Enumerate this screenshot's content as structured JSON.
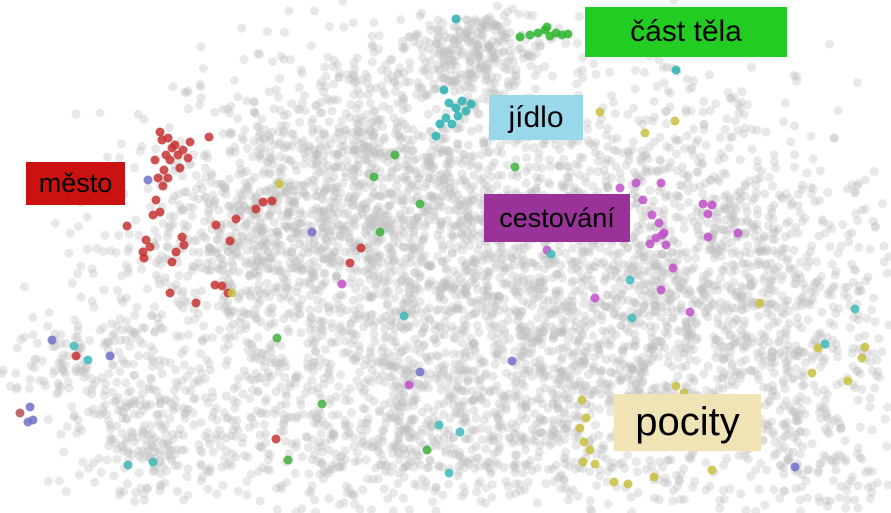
{
  "chart_data": {
    "type": "scatter",
    "title": "",
    "xlabel": "",
    "ylabel": "",
    "grid": false,
    "legend": "none",
    "background_points": {
      "color": "#bdbdbd",
      "opacity": 0.35,
      "approx_count": 6000
    },
    "clusters": [
      {
        "key": "cast_tela",
        "label": "část  těla",
        "label_bg": "#22cc22",
        "point_color": "#2db52d",
        "points": [
          [
            520,
            37
          ],
          [
            530,
            35
          ],
          [
            538,
            33
          ],
          [
            545,
            30
          ],
          [
            550,
            36
          ],
          [
            556,
            33
          ],
          [
            562,
            35
          ],
          [
            547,
            27
          ],
          [
            568,
            34
          ]
        ]
      },
      {
        "key": "jidlo",
        "label": "jídlo",
        "label_bg": "#99d8ea",
        "point_color": "#29b2b2",
        "points": [
          [
            444,
            90
          ],
          [
            449,
            103
          ],
          [
            456,
            108
          ],
          [
            462,
            101
          ],
          [
            466,
            111
          ],
          [
            471,
            104
          ],
          [
            446,
            118
          ],
          [
            452,
            124
          ],
          [
            440,
            124
          ],
          [
            458,
            116
          ],
          [
            436,
            136
          ],
          [
            456,
            19
          ],
          [
            676,
            70
          ]
        ]
      },
      {
        "key": "mesto",
        "label": "město",
        "label_bg": "#cc1111",
        "point_color": "#c83232",
        "points": [
          [
            160,
            132
          ],
          [
            168,
            138
          ],
          [
            175,
            145
          ],
          [
            183,
            150
          ],
          [
            170,
            160
          ],
          [
            164,
            170
          ],
          [
            158,
            178
          ],
          [
            178,
            155
          ],
          [
            188,
            158
          ],
          [
            172,
            148
          ],
          [
            162,
            140
          ],
          [
            166,
            155
          ],
          [
            155,
            160
          ],
          [
            180,
            168
          ],
          [
            190,
            142
          ],
          [
            168,
            178
          ],
          [
            163,
            186
          ],
          [
            156,
            200
          ],
          [
            160,
            212
          ],
          [
            153,
            215
          ],
          [
            127,
            226
          ],
          [
            146,
            240
          ],
          [
            150,
            247
          ],
          [
            143,
            252
          ],
          [
            144,
            258
          ],
          [
            182,
            237
          ],
          [
            184,
            245
          ],
          [
            176,
            252
          ],
          [
            172,
            262
          ],
          [
            209,
            137
          ],
          [
            216,
            225
          ],
          [
            236,
            219
          ],
          [
            256,
            209
          ],
          [
            263,
            202
          ],
          [
            272,
            201
          ],
          [
            230,
            241
          ],
          [
            215,
            285
          ],
          [
            222,
            286
          ],
          [
            228,
            293
          ],
          [
            196,
            303
          ],
          [
            170,
            293
          ],
          [
            361,
            248
          ],
          [
            350,
            263
          ],
          [
            276,
            439
          ],
          [
            76,
            356
          ]
        ]
      },
      {
        "key": "cestovani",
        "label": "cestování",
        "label_bg": "#993399",
        "point_color": "#c050c8",
        "points": [
          [
            620,
            188
          ],
          [
            636,
            183
          ],
          [
            661,
            183
          ],
          [
            643,
            200
          ],
          [
            652,
            215
          ],
          [
            659,
            223
          ],
          [
            664,
            233
          ],
          [
            656,
            238
          ],
          [
            666,
            245
          ],
          [
            650,
            244
          ],
          [
            662,
            235
          ],
          [
            703,
            204
          ],
          [
            712,
            205
          ],
          [
            708,
            214
          ],
          [
            738,
            233
          ],
          [
            624,
            238
          ],
          [
            708,
            237
          ],
          [
            673,
            268
          ],
          [
            661,
            290
          ],
          [
            595,
            298
          ],
          [
            547,
            250
          ],
          [
            690,
            312
          ],
          [
            342,
            284
          ],
          [
            409,
            385
          ]
        ]
      },
      {
        "key": "pocity",
        "label": "pocity",
        "label_bg": "#f0e4b6",
        "point_color": "#c8c040",
        "points": [
          [
            582,
            400
          ],
          [
            586,
            418
          ],
          [
            580,
            428
          ],
          [
            584,
            442
          ],
          [
            590,
            450
          ],
          [
            583,
            462
          ],
          [
            595,
            464
          ],
          [
            614,
            482
          ],
          [
            628,
            484
          ],
          [
            654,
            477
          ],
          [
            676,
            386
          ],
          [
            684,
            393
          ],
          [
            712,
            470
          ],
          [
            760,
            303
          ],
          [
            812,
            373
          ],
          [
            818,
            348
          ],
          [
            848,
            381
          ],
          [
            865,
            347
          ],
          [
            862,
            358
          ],
          [
            232,
            293
          ],
          [
            279,
            184
          ],
          [
            645,
            133
          ],
          [
            675,
            121
          ],
          [
            600,
            112
          ]
        ]
      }
    ],
    "other_points": [
      {
        "color": "#7070c8",
        "points": [
          [
            148,
            180
          ],
          [
            52,
            340
          ],
          [
            110,
            356
          ],
          [
            30,
            407
          ],
          [
            28,
            422
          ],
          [
            33,
            420
          ],
          [
            512,
            361
          ],
          [
            795,
            467
          ],
          [
            420,
            372
          ],
          [
            312,
            232
          ]
        ]
      },
      {
        "color": "#40b8b8",
        "points": [
          [
            74,
            346
          ],
          [
            88,
            360
          ],
          [
            128,
            465
          ],
          [
            153,
            462
          ],
          [
            439,
            425
          ],
          [
            460,
            432
          ],
          [
            449,
            473
          ],
          [
            404,
            316
          ],
          [
            551,
            254
          ],
          [
            630,
            280
          ],
          [
            632,
            318
          ],
          [
            855,
            309
          ],
          [
            825,
            344
          ]
        ]
      },
      {
        "color": "#40b040",
        "points": [
          [
            395,
            155
          ],
          [
            374,
            177
          ],
          [
            420,
            204
          ],
          [
            380,
            232
          ],
          [
            515,
            167
          ],
          [
            277,
            338
          ],
          [
            288,
            460
          ],
          [
            322,
            404
          ],
          [
            427,
            450
          ]
        ]
      },
      {
        "color": "#b05050",
        "points": [
          [
            20,
            413
          ]
        ]
      }
    ]
  },
  "labels": {
    "cast_tela": "část  těla",
    "jidlo": "jídlo",
    "mesto": "město",
    "cestovani": "cestování",
    "pocity": "pocity"
  },
  "colors": {
    "cast_tela_bg": "#22cc22",
    "jidlo_bg": "#99d8ea",
    "mesto_bg": "#cc1111",
    "cestovani_bg": "#993399",
    "pocity_bg": "#f0e4b6"
  }
}
